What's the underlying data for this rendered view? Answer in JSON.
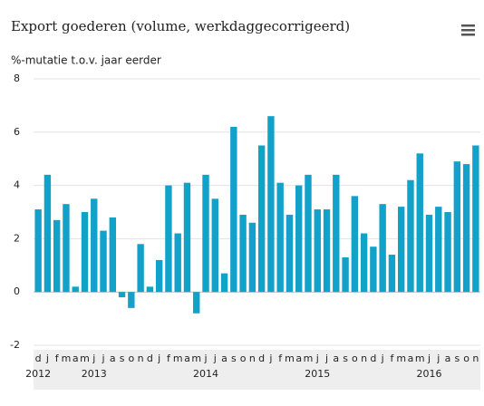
{
  "chart_data": {
    "type": "bar",
    "title": "Export goederen (volume, werkdaggecorrigeerd)",
    "subtitle": "%-mutatie t.o.v. jaar eerder",
    "categories": [
      "d",
      "j",
      "f",
      "m",
      "a",
      "m",
      "j",
      "j",
      "a",
      "s",
      "o",
      "n",
      "d",
      "j",
      "f",
      "m",
      "a",
      "m",
      "j",
      "j",
      "a",
      "s",
      "o",
      "n",
      "d",
      "j",
      "f",
      "m",
      "a",
      "m",
      "j",
      "j",
      "a",
      "s",
      "o",
      "n",
      "d",
      "j",
      "f",
      "m",
      "a",
      "m",
      "j",
      "j",
      "a",
      "s",
      "o",
      "n"
    ],
    "year_labels": [
      "2012",
      null,
      null,
      null,
      null,
      null,
      "2013",
      null,
      null,
      null,
      null,
      null,
      null,
      null,
      null,
      null,
      null,
      null,
      "2014",
      null,
      null,
      null,
      null,
      null,
      null,
      null,
      null,
      null,
      null,
      null,
      "2015",
      null,
      null,
      null,
      null,
      null,
      null,
      null,
      null,
      null,
      null,
      null,
      "2016",
      null,
      null,
      null,
      null,
      null
    ],
    "values": [
      3.1,
      4.4,
      2.7,
      3.3,
      0.2,
      3.0,
      3.5,
      2.3,
      2.8,
      -0.2,
      -0.6,
      1.8,
      0.2,
      1.2,
      4.0,
      2.2,
      4.1,
      -0.8,
      4.4,
      3.5,
      0.7,
      6.2,
      2.9,
      2.6,
      5.5,
      6.6,
      4.1,
      2.9,
      4.0,
      4.4,
      3.1,
      3.1,
      4.4,
      1.3,
      3.6,
      2.2,
      1.7,
      3.3,
      1.4,
      3.2,
      4.2,
      5.2,
      2.9,
      3.2,
      3.0,
      4.9,
      4.8,
      5.5
    ],
    "color": "#12a1c9",
    "ylim": [
      -2,
      8
    ],
    "yticks": [
      -2,
      0,
      2,
      4,
      6,
      8
    ],
    "grid": true
  }
}
